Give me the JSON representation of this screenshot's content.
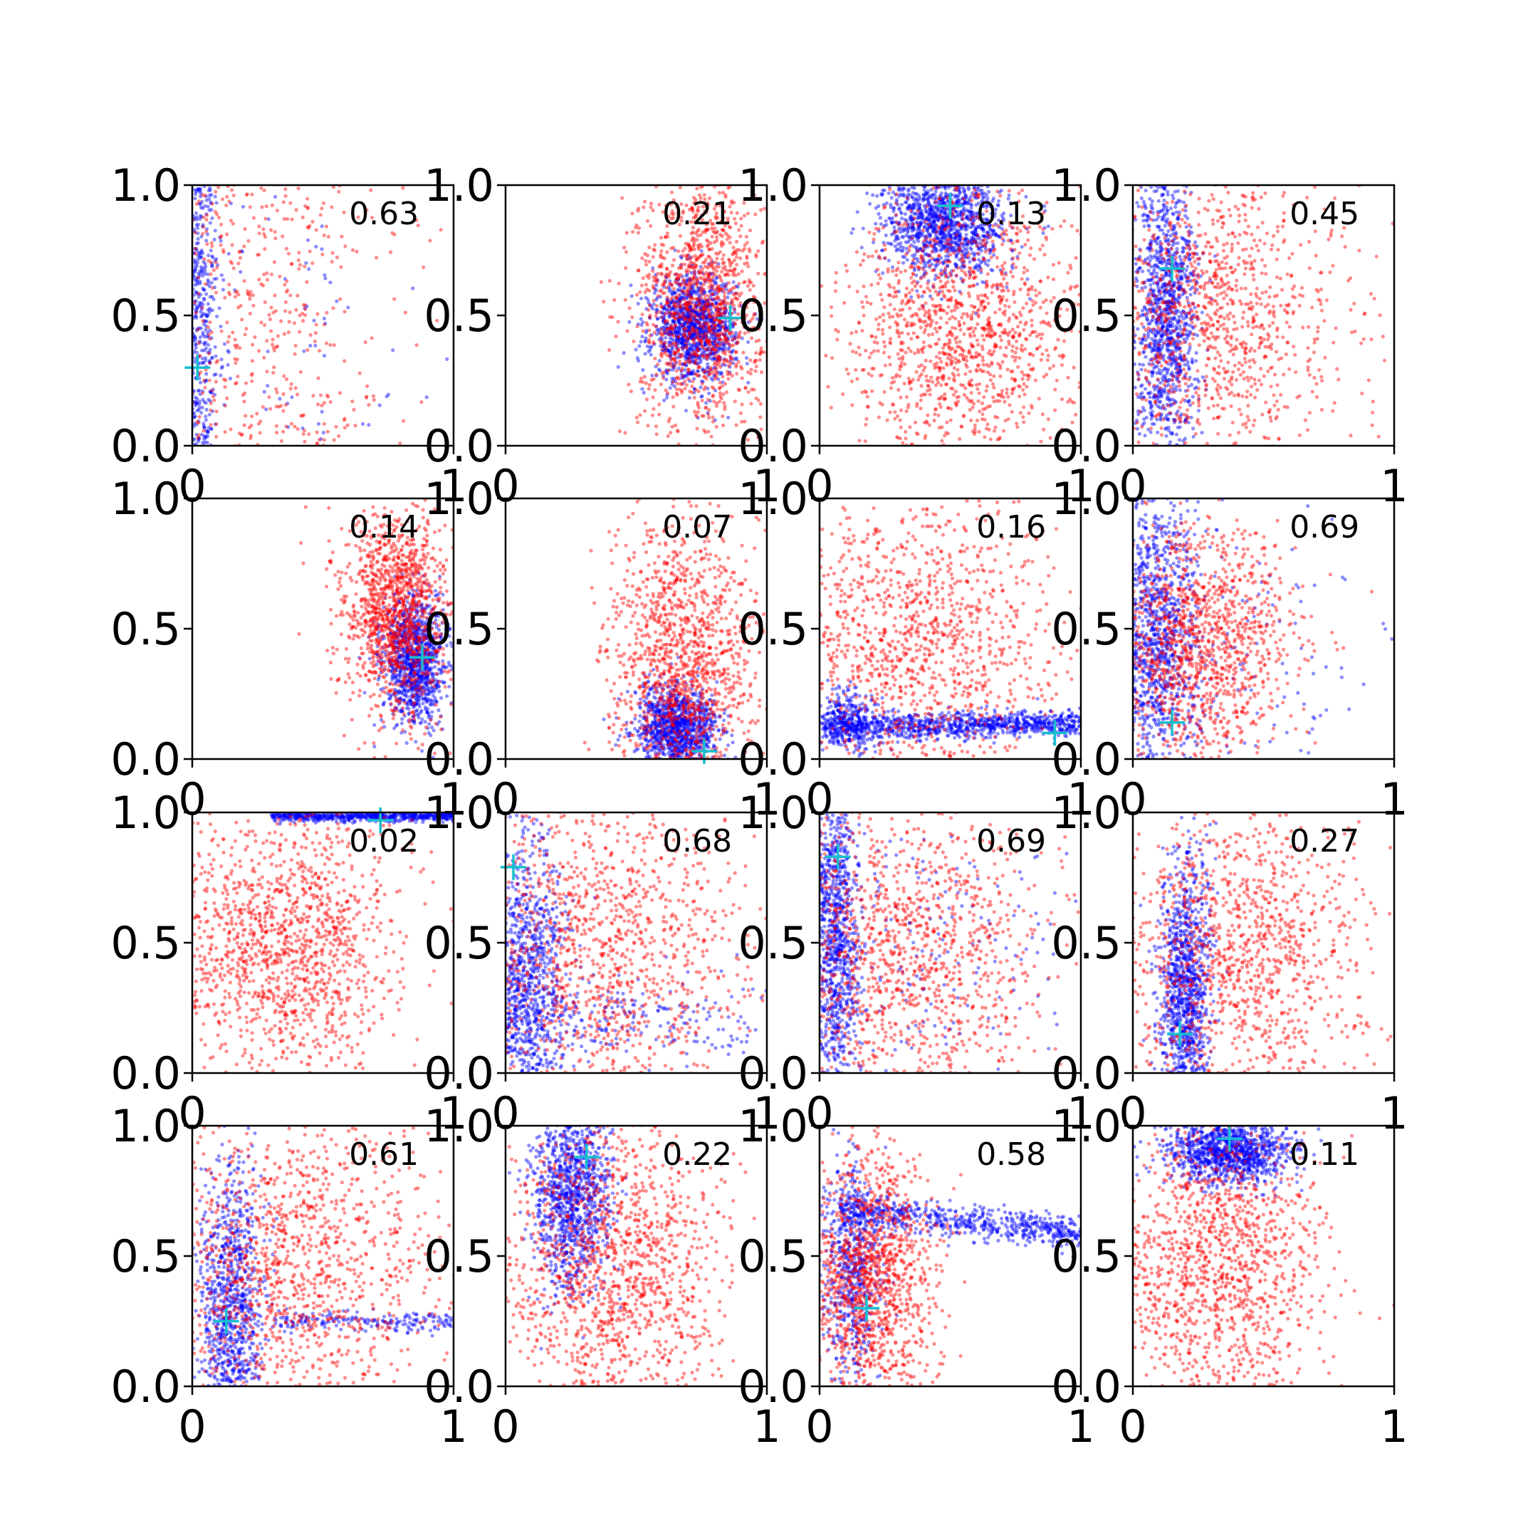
{
  "colors": {
    "background": "#ffffff",
    "axes": "#000000",
    "series_a": "#ff0000",
    "series_b": "#0000ff",
    "marker": "#17becf"
  },
  "chart_data": {
    "type": "scatter",
    "grid": false,
    "legend": "none",
    "layout": "4x4",
    "xlim": [
      0,
      1
    ],
    "ylim": [
      0,
      1
    ],
    "x_tick_labels": [
      "0",
      "1"
    ],
    "y_tick_labels": [
      "0.0",
      "0.5",
      "1.0"
    ],
    "marker_symbol": "+",
    "panels": [
      {
        "value": "0.63",
        "marker": [
          0.02,
          0.3
        ],
        "blue": [
          [
            0.02,
            0.0,
            0.04,
            0.5,
            0.0,
            1.0,
            1300
          ],
          [
            0.3,
            0.0,
            0.3,
            0.35,
            0.0,
            1.0,
            180
          ]
        ],
        "red": [
          [
            0.22,
            0.0,
            0.28,
            0.5,
            0.0,
            1.0,
            1400
          ]
        ]
      },
      {
        "value": "0.21",
        "marker": [
          0.86,
          0.49
        ],
        "blue": [
          [
            0.72,
            0.0,
            0.08,
            0.45,
            0.0,
            0.1,
            1200
          ]
        ],
        "red": [
          [
            0.75,
            0.0,
            0.12,
            0.55,
            0.0,
            0.25,
            1300
          ]
        ]
      },
      {
        "value": "0.13",
        "marker": [
          0.5,
          0.92
        ],
        "blue": [
          [
            0.48,
            0.0,
            0.12,
            0.85,
            0.0,
            0.1,
            1200
          ]
        ],
        "red": [
          [
            0.55,
            0.0,
            0.22,
            0.45,
            0.0,
            0.28,
            1400
          ]
        ]
      },
      {
        "value": "0.45",
        "marker": [
          0.15,
          0.68
        ],
        "blue": [
          [
            0.13,
            0.0,
            0.06,
            0.5,
            0.0,
            0.3,
            1200
          ]
        ],
        "red": [
          [
            0.3,
            0.0,
            0.25,
            0.5,
            0.0,
            0.32,
            1300
          ]
        ]
      },
      {
        "value": "0.14",
        "marker": [
          0.88,
          0.39
        ],
        "blue": [
          [
            0.85,
            0.0,
            0.06,
            0.38,
            0.0,
            0.12,
            1100
          ]
        ],
        "red": [
          [
            0.78,
            0.0,
            0.1,
            0.55,
            0.0,
            0.2,
            1300
          ]
        ]
      },
      {
        "value": "0.07",
        "marker": [
          0.76,
          0.03
        ],
        "blue": [
          [
            0.66,
            0.0,
            0.08,
            0.12,
            0.0,
            0.08,
            1100
          ]
        ],
        "red": [
          [
            0.68,
            0.0,
            0.14,
            0.35,
            0.0,
            0.28,
            1400
          ]
        ]
      },
      {
        "value": "0.16",
        "marker": [
          0.9,
          0.1
        ],
        "blue": [
          [
            0.02,
            1.0,
            0.0,
            0.12,
            0.02,
            0.025,
            1000
          ],
          [
            0.1,
            0.0,
            0.06,
            0.15,
            0.0,
            0.06,
            300
          ]
        ],
        "red": [
          [
            0.35,
            0.0,
            0.28,
            0.45,
            0.0,
            0.3,
            1300
          ]
        ]
      },
      {
        "value": "0.69",
        "marker": [
          0.15,
          0.14
        ],
        "blue": [
          [
            0.08,
            0.0,
            0.08,
            0.45,
            0.0,
            0.3,
            1100
          ],
          [
            0.3,
            0.0,
            0.3,
            0.35,
            0.0,
            0.25,
            200
          ]
        ],
        "red": [
          [
            0.25,
            0.0,
            0.18,
            0.45,
            0.0,
            0.22,
            1300
          ]
        ]
      },
      {
        "value": "0.02",
        "marker": [
          0.72,
          0.97
        ],
        "blue": [
          [
            0.3,
            1.0,
            0.0,
            0.985,
            0.0,
            0.01,
            900
          ]
        ],
        "red": [
          [
            0.35,
            0.0,
            0.22,
            0.5,
            0.0,
            0.25,
            1400
          ]
        ]
      },
      {
        "value": "0.68",
        "marker": [
          0.03,
          0.79
        ],
        "blue": [
          [
            0.08,
            0.0,
            0.08,
            0.35,
            0.0,
            0.28,
            1000
          ],
          [
            0.4,
            0.0,
            0.35,
            0.22,
            0.0,
            0.1,
            300
          ]
        ],
        "red": [
          [
            0.35,
            0.0,
            0.3,
            0.45,
            0.0,
            0.32,
            1400
          ]
        ]
      },
      {
        "value": "0.69",
        "marker": [
          0.07,
          0.83
        ],
        "blue": [
          [
            0.06,
            0.0,
            0.05,
            0.5,
            0.0,
            0.35,
            1100
          ],
          [
            0.4,
            0.0,
            0.3,
            0.5,
            0.0,
            0.3,
            200
          ]
        ],
        "red": [
          [
            0.3,
            0.0,
            0.28,
            0.45,
            0.0,
            0.32,
            1400
          ]
        ]
      },
      {
        "value": "0.27",
        "marker": [
          0.18,
          0.15
        ],
        "blue": [
          [
            0.2,
            0.0,
            0.05,
            0.3,
            0.0,
            0.25,
            1100
          ]
        ],
        "red": [
          [
            0.4,
            0.0,
            0.25,
            0.45,
            0.0,
            0.3,
            1300
          ]
        ]
      },
      {
        "value": "0.61",
        "marker": [
          0.13,
          0.25
        ],
        "blue": [
          [
            0.15,
            0.0,
            0.06,
            0.3,
            0.0,
            0.28,
            1000
          ],
          [
            0.3,
            1.0,
            0.0,
            0.25,
            0.0,
            0.02,
            250
          ]
        ],
        "red": [
          [
            0.35,
            0.0,
            0.28,
            0.45,
            0.0,
            0.32,
            1400
          ]
        ]
      },
      {
        "value": "0.22",
        "marker": [
          0.31,
          0.88
        ],
        "blue": [
          [
            0.25,
            0.0,
            0.07,
            0.75,
            0.0,
            0.18,
            1100
          ]
        ],
        "red": [
          [
            0.4,
            0.0,
            0.22,
            0.45,
            0.0,
            0.3,
            1400
          ]
        ]
      },
      {
        "value": "0.58",
        "marker": [
          0.18,
          0.3
        ],
        "blue": [
          [
            0.08,
            1.0,
            0.0,
            0.68,
            -0.1,
            0.03,
            700
          ],
          [
            0.12,
            0.0,
            0.06,
            0.45,
            0.0,
            0.22,
            600
          ]
        ],
        "red": [
          [
            0.2,
            0.0,
            0.12,
            0.4,
            0.0,
            0.25,
            1300
          ]
        ]
      },
      {
        "value": "0.11",
        "marker": [
          0.37,
          0.95
        ],
        "blue": [
          [
            0.36,
            0.0,
            0.12,
            0.9,
            0.0,
            0.06,
            1100
          ]
        ],
        "red": [
          [
            0.3,
            0.0,
            0.22,
            0.45,
            0.0,
            0.28,
            1400
          ]
        ]
      }
    ]
  }
}
